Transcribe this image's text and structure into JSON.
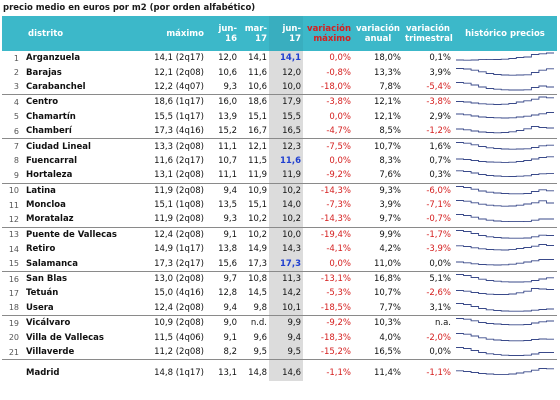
{
  "caption": "precio medio en euros por m2 (por orden alfabético)",
  "headers": {
    "distrito": "distrito",
    "maximo": "máximo",
    "jun16": "jun-16",
    "mar17": "mar-17",
    "jun17": "jun-17",
    "var_max": "variación máximo",
    "var_anual": "variación anual",
    "var_trim": "variación trimestral",
    "historico": "histórico precios"
  },
  "rows": [
    {
      "idx": "1",
      "distrito": "Arganzuela",
      "maximo": "14,1 (2q17)",
      "jun16": "12,0",
      "mar17": "14,1",
      "jun17": "14,1",
      "jun17_highlight": true,
      "var_max": "0,0%",
      "var_anual": "18,0%",
      "var_trim": "0,1%",
      "var_trim_negative": false,
      "spark": [
        0.3,
        0.28,
        0.3,
        0.34,
        0.36,
        0.35,
        0.38,
        0.45,
        0.55,
        0.6,
        0.85,
        0.92,
        1.0
      ]
    },
    {
      "idx": "2",
      "distrito": "Barajas",
      "maximo": "12,1 (2q08)",
      "jun16": "10,6",
      "mar17": "11,6",
      "jun17": "12,0",
      "jun17_highlight": false,
      "var_max": "-0,8%",
      "var_anual": "13,3%",
      "var_trim": "3,9%",
      "var_trim_negative": false,
      "spark": [
        0.95,
        0.9,
        0.78,
        0.62,
        0.45,
        0.35,
        0.3,
        0.28,
        0.3,
        0.32,
        0.55,
        0.78,
        0.92
      ]
    },
    {
      "idx": "3",
      "distrito": "Carabanchel",
      "maximo": "12,2 (4q07)",
      "jun16": "9,3",
      "mar17": "10,6",
      "jun17": "10,0",
      "jun17_highlight": false,
      "var_max": "-18,0%",
      "var_anual": "7,8%",
      "var_trim": "-5,4%",
      "var_trim_negative": true,
      "spark": [
        0.95,
        0.88,
        0.7,
        0.5,
        0.35,
        0.28,
        0.22,
        0.2,
        0.2,
        0.22,
        0.45,
        0.6,
        0.5
      ]
    },
    {
      "idx": "4",
      "distrito": "Centro",
      "maximo": "18,6 (1q17)",
      "jun16": "16,0",
      "mar17": "18,6",
      "jun17": "17,9",
      "jun17_highlight": false,
      "var_max": "-3,8%",
      "var_anual": "12,1%",
      "var_trim": "-3,8%",
      "var_trim_negative": true,
      "spark": [
        0.55,
        0.5,
        0.4,
        0.32,
        0.28,
        0.25,
        0.28,
        0.35,
        0.5,
        0.62,
        0.78,
        1.0,
        0.92
      ],
      "sep": true
    },
    {
      "idx": "5",
      "distrito": "Chamartín",
      "maximo": "15,5 (1q17)",
      "jun16": "13,9",
      "mar17": "15,1",
      "jun17": "15,5",
      "jun17_highlight": false,
      "var_max": "0,0%",
      "var_anual": "12,1%",
      "var_trim": "2,9%",
      "var_trim_negative": false,
      "spark": [
        0.8,
        0.72,
        0.6,
        0.5,
        0.45,
        0.42,
        0.4,
        0.42,
        0.5,
        0.58,
        0.7,
        0.82,
        0.95
      ]
    },
    {
      "idx": "6",
      "distrito": "Chamberí",
      "maximo": "17,3 (4q16)",
      "jun16": "15,2",
      "mar17": "16,7",
      "jun17": "16,5",
      "jun17_highlight": false,
      "var_max": "-4,7%",
      "var_anual": "8,5%",
      "var_trim": "-1,2%",
      "var_trim_negative": true,
      "spark": [
        0.7,
        0.62,
        0.5,
        0.4,
        0.35,
        0.32,
        0.35,
        0.42,
        0.55,
        0.72,
        0.95,
        0.85,
        0.8
      ]
    },
    {
      "idx": "7",
      "distrito": "Ciudad Lineal",
      "maximo": "13,3 (2q08)",
      "jun16": "11,1",
      "mar17": "12,1",
      "jun17": "12,3",
      "jun17_highlight": false,
      "var_max": "-7,5%",
      "var_anual": "10,7%",
      "var_trim": "1,6%",
      "var_trim_negative": false,
      "spark": [
        0.95,
        0.88,
        0.72,
        0.55,
        0.42,
        0.35,
        0.3,
        0.28,
        0.3,
        0.32,
        0.45,
        0.62,
        0.68
      ],
      "sep": true
    },
    {
      "idx": "8",
      "distrito": "Fuencarral",
      "maximo": "11,6 (2q17)",
      "jun16": "10,7",
      "mar17": "11,5",
      "jun17": "11,6",
      "jun17_highlight": true,
      "var_max": "0,0%",
      "var_anual": "8,3%",
      "var_trim": "0,7%",
      "var_trim_negative": false,
      "spark": [
        0.7,
        0.65,
        0.55,
        0.45,
        0.4,
        0.38,
        0.36,
        0.38,
        0.45,
        0.55,
        0.7,
        0.85,
        0.92
      ]
    },
    {
      "idx": "9",
      "distrito": "Hortaleza",
      "maximo": "13,1 (2q08)",
      "jun16": "11,1",
      "mar17": "11,9",
      "jun17": "11,9",
      "jun17_highlight": false,
      "var_max": "-9,2%",
      "var_anual": "7,6%",
      "var_trim": "0,3%",
      "var_trim_negative": false,
      "spark": [
        0.92,
        0.85,
        0.7,
        0.55,
        0.45,
        0.4,
        0.36,
        0.35,
        0.38,
        0.42,
        0.55,
        0.62,
        0.64
      ]
    },
    {
      "idx": "10",
      "distrito": "Latina",
      "maximo": "11,9 (2q08)",
      "jun16": "9,4",
      "mar17": "10,9",
      "jun17": "10,2",
      "jun17_highlight": false,
      "var_max": "-14,3%",
      "var_anual": "9,3%",
      "var_trim": "-6,0%",
      "var_trim_negative": true,
      "spark": [
        0.95,
        0.85,
        0.68,
        0.5,
        0.38,
        0.3,
        0.25,
        0.22,
        0.22,
        0.25,
        0.45,
        0.62,
        0.52
      ],
      "sep": true
    },
    {
      "idx": "11",
      "distrito": "Moncloa",
      "maximo": "15,1 (1q08)",
      "jun16": "13,5",
      "mar17": "15,1",
      "jun17": "14,0",
      "jun17_highlight": false,
      "var_max": "-7,3%",
      "var_anual": "3,9%",
      "var_trim": "-7,1%",
      "var_trim_negative": true,
      "spark": [
        0.95,
        0.88,
        0.72,
        0.58,
        0.48,
        0.42,
        0.38,
        0.4,
        0.48,
        0.6,
        0.72,
        0.92,
        0.7
      ]
    },
    {
      "idx": "12",
      "distrito": "Moratalaz",
      "maximo": "11,9 (2q08)",
      "jun16": "9,3",
      "mar17": "10,2",
      "jun17": "10,2",
      "jun17_highlight": false,
      "var_max": "-14,3%",
      "var_anual": "9,7%",
      "var_trim": "-0,7%",
      "var_trim_negative": true,
      "spark": [
        0.95,
        0.85,
        0.68,
        0.5,
        0.38,
        0.3,
        0.26,
        0.24,
        0.24,
        0.26,
        0.38,
        0.5,
        0.5
      ]
    },
    {
      "idx": "13",
      "distrito": "Puente de Vallecas",
      "maximo": "12,4 (2q08)",
      "jun16": "9,1",
      "mar17": "10,2",
      "jun17": "10,0",
      "jun17_highlight": false,
      "var_max": "-19,4%",
      "var_anual": "9,9%",
      "var_trim": "-1,7%",
      "var_trim_negative": true,
      "spark": [
        0.95,
        0.85,
        0.65,
        0.45,
        0.32,
        0.25,
        0.2,
        0.18,
        0.18,
        0.2,
        0.32,
        0.48,
        0.45
      ],
      "sep": true
    },
    {
      "idx": "14",
      "distrito": "Retiro",
      "maximo": "14,9 (1q17)",
      "jun16": "13,8",
      "mar17": "14,9",
      "jun17": "14,3",
      "jun17_highlight": false,
      "var_max": "-4,1%",
      "var_anual": "4,2%",
      "var_trim": "-3,9%",
      "var_trim_negative": true,
      "spark": [
        0.82,
        0.75,
        0.62,
        0.52,
        0.45,
        0.42,
        0.4,
        0.44,
        0.55,
        0.65,
        0.78,
        0.95,
        0.85
      ]
    },
    {
      "idx": "15",
      "distrito": "Salamanca",
      "maximo": "17,3 (2q17)",
      "jun16": "15,6",
      "mar17": "17,3",
      "jun17": "17,3",
      "jun17_highlight": true,
      "var_max": "0,0%",
      "var_anual": "11,0%",
      "var_trim": "0,0%",
      "var_trim_negative": false,
      "spark": [
        0.7,
        0.62,
        0.52,
        0.45,
        0.42,
        0.4,
        0.42,
        0.48,
        0.58,
        0.7,
        0.82,
        0.95,
        0.95
      ]
    },
    {
      "idx": "16",
      "distrito": "San Blas",
      "maximo": "13,0 (2q08)",
      "jun16": "9,7",
      "mar17": "10,8",
      "jun17": "11,3",
      "jun17_highlight": false,
      "var_max": "-13,1%",
      "var_anual": "16,8%",
      "var_trim": "5,1%",
      "var_trim_negative": false,
      "spark": [
        0.95,
        0.85,
        0.65,
        0.48,
        0.35,
        0.28,
        0.22,
        0.2,
        0.2,
        0.22,
        0.35,
        0.5,
        0.62
      ],
      "sep": true
    },
    {
      "idx": "17",
      "distrito": "Tetuán",
      "maximo": "15,0 (4q16)",
      "jun16": "12,8",
      "mar17": "14,5",
      "jun17": "14,2",
      "jun17_highlight": false,
      "var_max": "-5,3%",
      "var_anual": "10,7%",
      "var_trim": "-2,6%",
      "var_trim_negative": true,
      "spark": [
        0.75,
        0.68,
        0.55,
        0.45,
        0.38,
        0.35,
        0.35,
        0.4,
        0.52,
        0.68,
        0.95,
        0.9,
        0.85
      ]
    },
    {
      "idx": "18",
      "distrito": "Usera",
      "maximo": "12,4 (2q08)",
      "jun16": "9,4",
      "mar17": "9,8",
      "jun17": "10,1",
      "jun17_highlight": false,
      "var_max": "-18,5%",
      "var_anual": "7,7%",
      "var_trim": "3,1%",
      "var_trim_negative": false,
      "spark": [
        0.95,
        0.85,
        0.65,
        0.45,
        0.32,
        0.25,
        0.2,
        0.18,
        0.18,
        0.2,
        0.28,
        0.35,
        0.4
      ]
    },
    {
      "idx": "19",
      "distrito": "Vicálvaro",
      "maximo": "10,9 (2q08)",
      "jun16": "9,0",
      "mar17": "n.d.",
      "jun17": "9,9",
      "jun17_highlight": false,
      "var_max": "-9,2%",
      "var_anual": "10,3%",
      "var_trim": "n.a.",
      "var_trim_negative": false,
      "spark": [
        0.95,
        0.88,
        0.72,
        0.55,
        0.45,
        0.4,
        0.35,
        0.32,
        0.32,
        0.35,
        0.5,
        0.62,
        0.7
      ],
      "sep": true
    },
    {
      "idx": "20",
      "distrito": "Villa de Vallecas",
      "maximo": "11,5 (4q06)",
      "jun16": "9,1",
      "mar17": "9,6",
      "jun17": "9,4",
      "jun17_highlight": false,
      "var_max": "-18,3%",
      "var_anual": "4,0%",
      "var_trim": "-2,0%",
      "var_trim_negative": true,
      "spark": [
        0.95,
        0.88,
        0.7,
        0.52,
        0.38,
        0.3,
        0.25,
        0.22,
        0.22,
        0.25,
        0.35,
        0.4,
        0.38
      ]
    },
    {
      "idx": "21",
      "distrito": "Villaverde",
      "maximo": "11,2 (2q08)",
      "jun16": "8,2",
      "mar17": "9,5",
      "jun17": "9,5",
      "jun17_highlight": false,
      "var_max": "-15,2%",
      "var_anual": "16,5%",
      "var_trim": "0,0%",
      "var_trim_negative": false,
      "spark": [
        0.95,
        0.85,
        0.65,
        0.45,
        0.32,
        0.24,
        0.18,
        0.15,
        0.15,
        0.18,
        0.3,
        0.45,
        0.45
      ]
    }
  ],
  "total": {
    "idx": "",
    "distrito": "Madrid",
    "maximo": "14,8 (1q17)",
    "jun16": "13,1",
    "mar17": "14,8",
    "jun17": "14,6",
    "jun17_highlight": false,
    "var_max": "-1,1%",
    "var_anual": "11,4%",
    "var_trim": "-1,1%",
    "var_trim_negative": true,
    "spark": [
      0.72,
      0.65,
      0.55,
      0.45,
      0.4,
      0.36,
      0.36,
      0.4,
      0.5,
      0.62,
      0.78,
      0.95,
      0.92
    ]
  },
  "colors": {
    "header_bg": "#3cb8c9",
    "negative": "#d52020",
    "highlight": "#1f3fd0",
    "jun17_col_bg": "#dcdcdc",
    "sparkline": "#3a4a8a"
  }
}
